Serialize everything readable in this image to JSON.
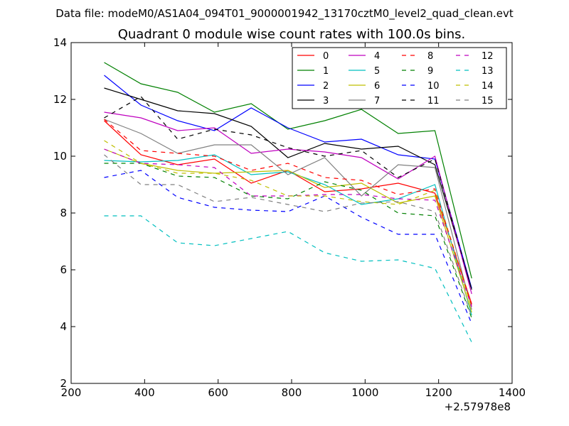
{
  "chart_data": {
    "type": "line",
    "suptitle": "Data file: modeM0/AS1A04_094T01_9000001942_13170cztM0_level2_quad_clean.evt",
    "title": "Quadrant 0 module wise count rates with 100.0s bins.",
    "xlabel": "",
    "ylabel": "",
    "x_offset_label": "+2.57978e8",
    "xlim": [
      200,
      1400
    ],
    "ylim": [
      2,
      14
    ],
    "x_ticks": [
      200,
      400,
      600,
      800,
      1000,
      1200,
      1400
    ],
    "y_ticks": [
      2,
      4,
      6,
      8,
      10,
      12,
      14
    ],
    "x": [
      290,
      390,
      490,
      590,
      690,
      790,
      890,
      990,
      1090,
      1190,
      1290
    ],
    "legend_position": "upper-right",
    "legend_columns": 4,
    "series": [
      {
        "name": "0",
        "color": "#ff0000",
        "style": "solid",
        "values": [
          11.25,
          10.05,
          9.7,
          9.9,
          9.05,
          9.5,
          8.75,
          8.85,
          9.05,
          8.7,
          4.8
        ]
      },
      {
        "name": "1",
        "color": "#008000",
        "style": "solid",
        "values": [
          13.3,
          12.55,
          12.25,
          11.55,
          11.85,
          10.95,
          11.25,
          11.65,
          10.8,
          10.9,
          5.7
        ]
      },
      {
        "name": "2",
        "color": "#0000ff",
        "style": "solid",
        "values": [
          12.85,
          11.8,
          11.25,
          10.9,
          11.7,
          11.0,
          10.5,
          10.6,
          10.05,
          9.9,
          5.35
        ]
      },
      {
        "name": "3",
        "color": "#000000",
        "style": "solid",
        "values": [
          12.4,
          12.0,
          11.6,
          11.5,
          11.05,
          9.95,
          10.45,
          10.25,
          10.35,
          9.7,
          5.3
        ]
      },
      {
        "name": "4",
        "color": "#bf00bf",
        "style": "solid",
        "values": [
          11.55,
          11.35,
          10.9,
          11.0,
          10.1,
          10.25,
          10.15,
          9.95,
          9.2,
          10.0,
          5.15
        ]
      },
      {
        "name": "5",
        "color": "#00bfbf",
        "style": "solid",
        "values": [
          9.85,
          9.8,
          9.85,
          10.05,
          9.35,
          9.45,
          9.0,
          8.3,
          8.5,
          9.0,
          4.4
        ]
      },
      {
        "name": "6",
        "color": "#bfbf00",
        "style": "solid",
        "values": [
          10.25,
          9.75,
          9.5,
          9.4,
          9.45,
          9.5,
          8.9,
          9.05,
          8.35,
          8.6,
          4.5
        ]
      },
      {
        "name": "7",
        "color": "#808080",
        "style": "solid",
        "values": [
          11.3,
          10.8,
          10.1,
          10.4,
          10.4,
          9.35,
          9.95,
          8.6,
          9.7,
          9.6,
          4.6
        ]
      },
      {
        "name": "8",
        "color": "#ff0000",
        "style": "dashed",
        "values": [
          11.3,
          10.2,
          10.1,
          10.0,
          9.5,
          9.75,
          9.25,
          9.15,
          8.65,
          8.85,
          4.75
        ]
      },
      {
        "name": "9",
        "color": "#008000",
        "style": "dashed",
        "values": [
          9.75,
          9.75,
          9.3,
          9.25,
          8.6,
          8.5,
          9.1,
          8.8,
          8.0,
          7.9,
          4.3
        ]
      },
      {
        "name": "10",
        "color": "#0000ff",
        "style": "dashed",
        "values": [
          9.25,
          9.5,
          8.55,
          8.2,
          8.1,
          8.05,
          8.6,
          7.85,
          7.25,
          7.25,
          4.1
        ]
      },
      {
        "name": "11",
        "color": "#000000",
        "style": "dashed",
        "values": [
          11.35,
          12.1,
          10.6,
          10.95,
          10.75,
          10.3,
          10.0,
          10.2,
          9.25,
          9.9,
          5.3
        ]
      },
      {
        "name": "12",
        "color": "#bf00bf",
        "style": "dashed",
        "values": [
          10.25,
          9.75,
          9.7,
          9.6,
          8.6,
          8.6,
          8.65,
          8.65,
          8.5,
          8.45,
          4.7
        ]
      },
      {
        "name": "13",
        "color": "#00bfbf",
        "style": "dashed",
        "values": [
          7.9,
          7.9,
          6.95,
          6.85,
          7.1,
          7.35,
          6.6,
          6.3,
          6.35,
          6.05,
          3.45
        ]
      },
      {
        "name": "14",
        "color": "#bfbf00",
        "style": "dashed",
        "values": [
          10.55,
          9.75,
          9.4,
          9.4,
          9.15,
          8.6,
          8.6,
          8.4,
          8.3,
          8.8,
          4.65
        ]
      },
      {
        "name": "15",
        "color": "#808080",
        "style": "dashed",
        "values": [
          10.05,
          9.0,
          9.0,
          8.4,
          8.55,
          8.3,
          8.05,
          8.35,
          8.4,
          8.05,
          4.35
        ]
      }
    ]
  }
}
